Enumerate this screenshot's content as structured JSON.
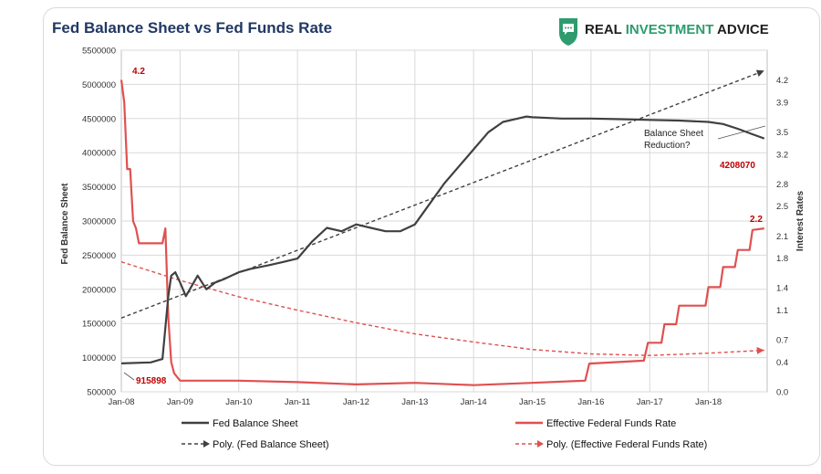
{
  "header": {
    "title": "Fed Balance Sheet vs Fed Funds Rate",
    "brand_prefix": "REAL ",
    "brand_accent": "INVESTMENT",
    "brand_suffix": " ADVICE",
    "brand_icon": "shield-chat-icon",
    "brand_color": "#1f1f1f",
    "accent_color": "#2e9c6e"
  },
  "chart_data": {
    "type": "line",
    "title": "Fed Balance Sheet vs Fed Funds Rate",
    "xlabel": "",
    "ylabel": "Fed Balance Sheet",
    "y2label": "Interest Rates",
    "ylim": [
      500000,
      5500000
    ],
    "y2lim": [
      0,
      4.6
    ],
    "y_ticks": [
      500000,
      1000000,
      1500000,
      2000000,
      2500000,
      3000000,
      3500000,
      4000000,
      4500000,
      5000000,
      5500000
    ],
    "y2_ticks": [
      "0.0",
      "0.4",
      "0.7",
      "1.1",
      "1.4",
      "1.8",
      "2.1",
      "2.5",
      "2.8",
      "3.2",
      "3.5",
      "3.9",
      "4.2"
    ],
    "x_tick_labels": [
      "Jan-08",
      "Jan-09",
      "Jan-10",
      "Jan-11",
      "Jan-12",
      "Jan-13",
      "Jan-14",
      "Jan-15",
      "Jan-16",
      "Jan-17",
      "Jan-18"
    ],
    "grid": true,
    "legend_position": "bottom",
    "series": [
      {
        "name": "Fed Balance Sheet",
        "axis": "left",
        "color": "#404040",
        "style": "solid",
        "x": [
          2008.0,
          2008.5,
          2008.7,
          2008.8,
          2008.85,
          2008.92,
          2009.0,
          2009.1,
          2009.2,
          2009.3,
          2009.45,
          2009.6,
          2009.75,
          2010.0,
          2010.2,
          2010.5,
          2010.75,
          2011.0,
          2011.25,
          2011.5,
          2011.75,
          2012.0,
          2012.25,
          2012.5,
          2012.75,
          2013.0,
          2013.25,
          2013.5,
          2013.75,
          2014.0,
          2014.25,
          2014.5,
          2014.75,
          2014.9,
          2015.0,
          2015.5,
          2016.0,
          2016.5,
          2017.0,
          2017.5,
          2018.0,
          2018.25,
          2018.5,
          2018.75,
          2018.95
        ],
        "values": [
          915898,
          930000,
          980000,
          1900000,
          2200000,
          2250000,
          2100000,
          1900000,
          2050000,
          2200000,
          2000000,
          2100000,
          2150000,
          2250000,
          2300000,
          2350000,
          2400000,
          2450000,
          2700000,
          2900000,
          2850000,
          2950000,
          2900000,
          2850000,
          2850000,
          2950000,
          3250000,
          3550000,
          3800000,
          4050000,
          4300000,
          4450000,
          4500000,
          4530000,
          4520000,
          4500000,
          4500000,
          4490000,
          4480000,
          4470000,
          4450000,
          4420000,
          4350000,
          4270000,
          4208070
        ]
      },
      {
        "name": "Effective Federal Funds Rate",
        "axis": "right",
        "color": "#e05050",
        "style": "solid",
        "x": [
          2008.0,
          2008.05,
          2008.1,
          2008.15,
          2008.2,
          2008.25,
          2008.3,
          2008.35,
          2008.4,
          2008.5,
          2008.6,
          2008.7,
          2008.75,
          2008.8,
          2008.85,
          2008.9,
          2008.95,
          2009.0,
          2009.5,
          2010.0,
          2011.0,
          2012.0,
          2013.0,
          2014.0,
          2015.0,
          2015.9,
          2015.97,
          2016.9,
          2016.97,
          2017.2,
          2017.25,
          2017.45,
          2017.5,
          2017.95,
          2018.0,
          2018.2,
          2018.25,
          2018.45,
          2018.5,
          2018.7,
          2018.75,
          2018.95
        ],
        "values": [
          4.2,
          3.9,
          3.0,
          3.0,
          2.3,
          2.2,
          2.0,
          2.0,
          2.0,
          2.0,
          2.0,
          2.0,
          2.2,
          1.0,
          0.4,
          0.25,
          0.2,
          0.15,
          0.15,
          0.15,
          0.13,
          0.1,
          0.12,
          0.09,
          0.12,
          0.15,
          0.38,
          0.42,
          0.66,
          0.66,
          0.91,
          0.91,
          1.16,
          1.16,
          1.41,
          1.41,
          1.68,
          1.68,
          1.91,
          1.91,
          2.18,
          2.2
        ]
      },
      {
        "name": "Poly. (Fed Balance Sheet)",
        "axis": "left",
        "color": "#404040",
        "style": "dashed",
        "x": [
          2008.0,
          2018.95
        ],
        "values": [
          1580000,
          5200000
        ]
      },
      {
        "name": "Poly. (Effective Federal Funds Rate)",
        "axis": "right",
        "color": "#e05050",
        "style": "dashed",
        "x": [
          2008.0,
          2009.0,
          2010.0,
          2011.0,
          2012.0,
          2013.0,
          2014.0,
          2015.0,
          2016.0,
          2017.0,
          2018.0,
          2018.95
        ],
        "values": [
          1.75,
          1.5,
          1.28,
          1.1,
          0.93,
          0.78,
          0.67,
          0.57,
          0.51,
          0.49,
          0.52,
          0.56
        ]
      }
    ],
    "annotations": [
      {
        "text": "4.2",
        "x": 2008.0,
        "value": 4.2,
        "axis": "right"
      },
      {
        "text": "915898",
        "x": 2008.0,
        "value": 915898,
        "axis": "left"
      },
      {
        "text": "Balance Sheet",
        "x": 2018.95,
        "value": 4208070,
        "axis": "left"
      },
      {
        "text": "Reduction?",
        "x": 2018.95,
        "value": 4208070,
        "axis": "left"
      },
      {
        "text": "4208070",
        "x": 2018.95,
        "value": 4208070,
        "axis": "left"
      },
      {
        "text": "2.2",
        "x": 2018.95,
        "value": 2.2,
        "axis": "right"
      }
    ]
  }
}
